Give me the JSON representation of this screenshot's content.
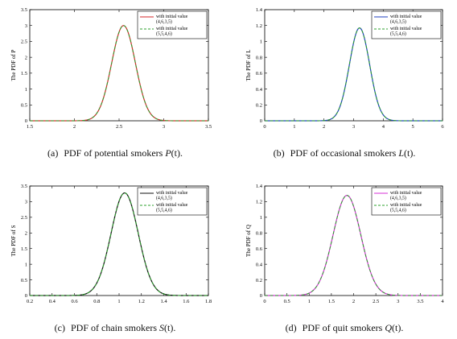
{
  "chart_data": [
    {
      "type": "line",
      "id": "a",
      "ylabel": "The PDF of P",
      "xlim": [
        1.5,
        3.5
      ],
      "ylim": [
        0,
        3.5
      ],
      "xticks": [
        "1.5",
        "2",
        "2.5",
        "3",
        "3.5"
      ],
      "yticks": [
        "0",
        "0.5",
        "1",
        "1.5",
        "2",
        "2.5",
        "3",
        "3.5"
      ],
      "peak": {
        "x": 2.55,
        "y": 3.0
      },
      "legend_position": "top-right",
      "series": [
        {
          "name": "with initial value (4,6,3,5)",
          "color": "#d62728",
          "dash": "solid"
        },
        {
          "name": "with initial value (5,5,4,6)",
          "color": "#2ca02c",
          "dash": "dashed"
        }
      ],
      "caption_tag": "(a)",
      "caption_text": "PDF of potential smokers",
      "caption_var": "P",
      "caption_arg": "(t)."
    },
    {
      "type": "line",
      "id": "b",
      "ylabel": "The PDF of L",
      "xlim": [
        0,
        6
      ],
      "ylim": [
        0,
        1.4
      ],
      "xticks": [
        "0",
        "1",
        "2",
        "3",
        "4",
        "5",
        "6"
      ],
      "yticks": [
        "0",
        "0.2",
        "0.4",
        "0.6",
        "0.8",
        "1",
        "1.2",
        "1.4"
      ],
      "peak": {
        "x": 3.2,
        "y": 1.17
      },
      "legend_position": "top-right",
      "series": [
        {
          "name": "with initial value (4,6,3,5)",
          "color": "#1f3fbf",
          "dash": "solid"
        },
        {
          "name": "with initial value (5,5,4,6)",
          "color": "#2ca02c",
          "dash": "dashed"
        }
      ],
      "caption_tag": "(b)",
      "caption_text": "PDF of occasional smokers",
      "caption_var": "L",
      "caption_arg": "(t)."
    },
    {
      "type": "line",
      "id": "c",
      "ylabel": "The PDF of S",
      "xlim": [
        0.2,
        1.8
      ],
      "ylim": [
        0,
        3.5
      ],
      "xticks": [
        "0.2",
        "0.4",
        "0.6",
        "0.8",
        "1",
        "1.2",
        "1.4",
        "1.6",
        "1.8"
      ],
      "yticks": [
        "0",
        "0.5",
        "1",
        "1.5",
        "2",
        "2.5",
        "3",
        "3.5"
      ],
      "peak": {
        "x": 1.05,
        "y": 3.28
      },
      "legend_position": "top-right",
      "series": [
        {
          "name": "with initial value (4,6,3,5)",
          "color": "#111111",
          "dash": "solid"
        },
        {
          "name": "with initial value (5,5,4,6)",
          "color": "#2ca02c",
          "dash": "dashed"
        }
      ],
      "caption_tag": "(c)",
      "caption_text": "PDF of chain smokers",
      "caption_var": "S",
      "caption_arg": "(t)."
    },
    {
      "type": "line",
      "id": "d",
      "ylabel": "The PDF of Q",
      "xlim": [
        0,
        4
      ],
      "ylim": [
        0,
        1.4
      ],
      "xticks": [
        "0",
        "0.5",
        "1",
        "1.5",
        "2",
        "2.5",
        "3",
        "3.5",
        "4"
      ],
      "yticks": [
        "0",
        "0.2",
        "0.4",
        "0.6",
        "0.8",
        "1",
        "1.2",
        "1.4"
      ],
      "peak": {
        "x": 1.85,
        "y": 1.28
      },
      "legend_position": "top-right",
      "series": [
        {
          "name": "with initial value (4,6,3,5)",
          "color": "#d62fd6",
          "dash": "solid"
        },
        {
          "name": "with initial value (5,5,4,6)",
          "color": "#2ca02c",
          "dash": "dashed"
        }
      ],
      "caption_tag": "(d)",
      "caption_text": "PDF of quit smokers",
      "caption_var": "Q",
      "caption_arg": "(t)."
    }
  ]
}
